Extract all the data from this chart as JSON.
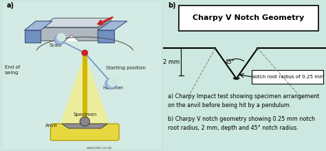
{
  "bg_color": "#cce8e0",
  "panel_bg": "#cce8e0",
  "title": "Charpy V Notch Geometry",
  "caption_a": "a) Charpy Impact test showing specimen arrangement\non the anvil before being hit by a pendulum.",
  "caption_b": "b) Charpy V notch geometry showing 0.25 mm notch\nroot radius, 2 mm, depth and 45° notch radius.",
  "label_2mm": "2 mm",
  "label_45deg": "45°",
  "label_notch": "Notch root radius of 0.25 mm",
  "label_a": "a)",
  "label_b": "b)",
  "white": "#ffffff",
  "black": "#000000",
  "gray": "#888888",
  "darkgray": "#555555",
  "yellow": "#f0e060",
  "steel_blue": "#7090c0",
  "light_steel": "#a0b8d8",
  "silver": "#b0b8c0",
  "light_silver": "#d0d8e0",
  "red": "#cc2222",
  "pivot_red": "#cc2222",
  "specimen_green": "#808080"
}
